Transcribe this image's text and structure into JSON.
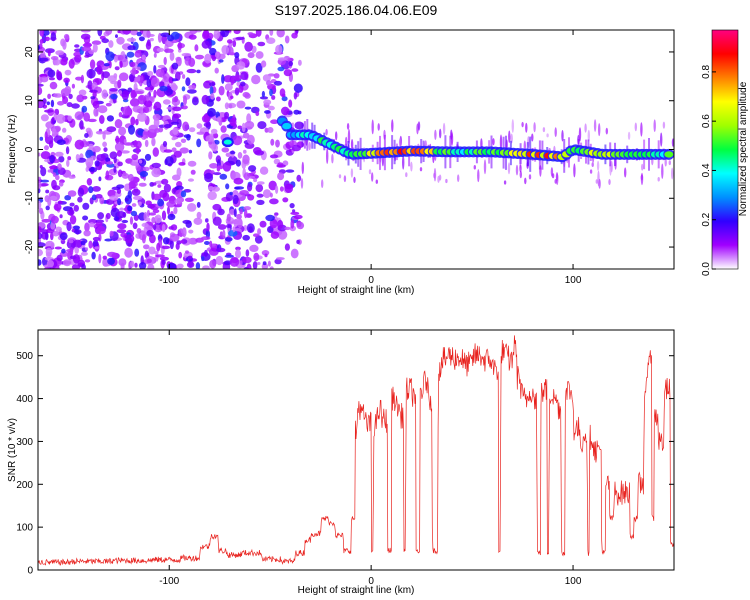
{
  "title": "S197.2025.186.04.06.E09",
  "chart_data": [
    {
      "type": "heatmap",
      "xlabel": "Height of straight line (km)",
      "ylabel": "Frequency (Hz)",
      "xlim": [
        -165,
        150
      ],
      "ylim": [
        -24.5,
        24.5
      ],
      "xticks": [
        -100,
        0,
        100
      ],
      "xtick_labels": [
        "-100",
        "0",
        "100"
      ],
      "yticks": [
        20,
        10,
        0,
        -10,
        -20
      ],
      "ytick_labels": [
        "20",
        "10",
        "0",
        "-10",
        "-20"
      ],
      "colorbar": {
        "label": "Normalized spectral amplitude",
        "range": [
          0,
          0.97
        ],
        "ticks": [
          0.0,
          0.2,
          0.4,
          0.6,
          0.8
        ],
        "tick_labels": [
          "0.0",
          "0.2",
          "0.4",
          "0.6",
          "0.8"
        ],
        "colors": [
          "#ffffff",
          "#a000ff",
          "#3000ff",
          "#0090ff",
          "#00ffff",
          "#00ff40",
          "#a0ff00",
          "#ffff00",
          "#ff8000",
          "#ff0000",
          "#ff0080"
        ]
      },
      "tone_trace": {
        "x_km": [
          -71,
          -43,
          -40,
          -30,
          -20,
          -10,
          0,
          20,
          40,
          60,
          80,
          95,
          100,
          115,
          130,
          148
        ],
        "frequency_hz": [
          1.5,
          6,
          3,
          3,
          1,
          -1,
          -0.8,
          -0.3,
          -0.5,
          -0.5,
          -1,
          -1.5,
          0,
          -1,
          -1,
          -1
        ],
        "amplitude": [
          0.3,
          0.3,
          0.4,
          0.45,
          0.5,
          0.45,
          0.75,
          0.9,
          0.5,
          0.55,
          0.85,
          0.8,
          0.5,
          0.7,
          0.5,
          0.5
        ]
      },
      "noise_extent_km": [
        -165,
        -35
      ]
    },
    {
      "type": "line",
      "xlabel": "Height of straight line (km)",
      "ylabel": "SNR (10 * v/v)",
      "xlim": [
        -165,
        150
      ],
      "ylim": [
        0,
        560
      ],
      "xticks": [
        -100,
        0,
        100
      ],
      "xtick_labels": [
        "-100",
        "0",
        "100"
      ],
      "yticks": [
        0,
        100,
        200,
        300,
        400,
        500
      ],
      "ytick_labels": [
        "0",
        "100",
        "200",
        "300",
        "400",
        "500"
      ],
      "grid": false,
      "series": [
        {
          "color": "#e8221e",
          "x": [
            -165,
            -150,
            -130,
            -110,
            -95,
            -85,
            -80,
            -76,
            -72,
            -65,
            -55,
            -45,
            -38,
            -33,
            -30,
            -25,
            -21,
            -18,
            -14,
            -10,
            -8,
            -7,
            -5,
            -3,
            0,
            1,
            3,
            5,
            8,
            10,
            12,
            14,
            16,
            17,
            20,
            22,
            24,
            26,
            28,
            30,
            33,
            35,
            37,
            40,
            45,
            50,
            55,
            60,
            63,
            64,
            66,
            68,
            70,
            72,
            74,
            75,
            78,
            80,
            82,
            84,
            85,
            87,
            88,
            90,
            92,
            94,
            96,
            97,
            99,
            100,
            103,
            105,
            107,
            108,
            110,
            112,
            114,
            116,
            118,
            120,
            124,
            128,
            130,
            132,
            135,
            137,
            139,
            140,
            142,
            145,
            148,
            150
          ],
          "y": [
            22,
            18,
            20,
            22,
            24,
            28,
            55,
            80,
            45,
            35,
            40,
            25,
            20,
            40,
            70,
            85,
            120,
            110,
            80,
            45,
            120,
            320,
            380,
            360,
            340,
            45,
            340,
            370,
            350,
            45,
            400,
            380,
            360,
            45,
            420,
            410,
            40,
            420,
            440,
            400,
            45,
            470,
            490,
            500,
            495,
            480,
            500,
            490,
            470,
            40,
            510,
            500,
            490,
            520,
            450,
            410,
            400,
            420,
            400,
            40,
            410,
            420,
            40,
            410,
            400,
            380,
            40,
            410,
            420,
            400,
            330,
            300,
            320,
            40,
            310,
            280,
            280,
            40,
            200,
            120,
            180,
            180,
            80,
            120,
            200,
            420,
            510,
            120,
            360,
            300,
            420,
            60
          ]
        }
      ]
    }
  ]
}
